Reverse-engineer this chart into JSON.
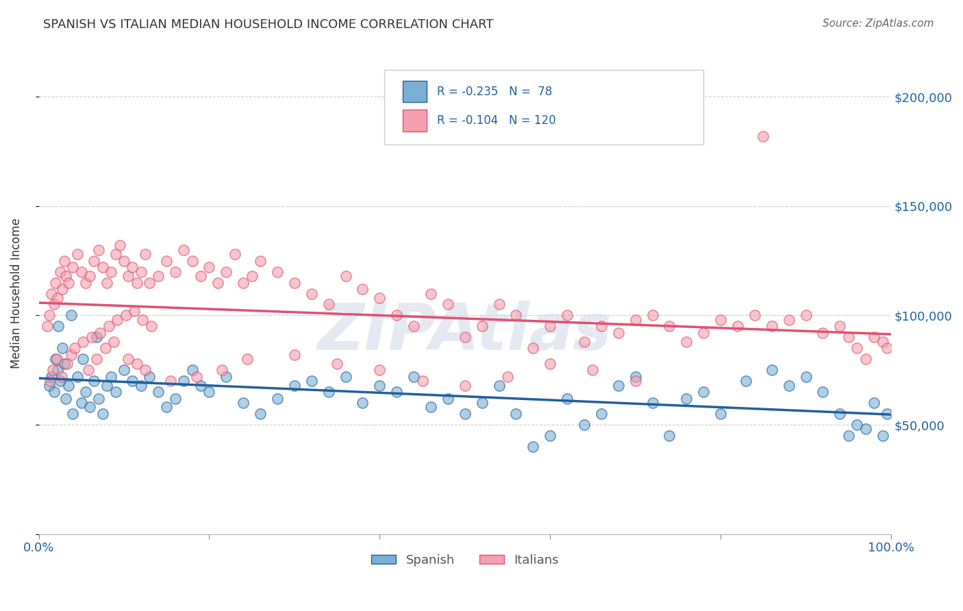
{
  "title": "SPANISH VS ITALIAN MEDIAN HOUSEHOLD INCOME CORRELATION CHART",
  "source": "Source: ZipAtlas.com",
  "ylabel": "Median Household Income",
  "xlim": [
    0.0,
    100.0
  ],
  "ylim": [
    0,
    220000
  ],
  "yticks": [
    0,
    50000,
    100000,
    150000,
    200000
  ],
  "grid_color": "#cccccc",
  "bg_color": "#ffffff",
  "blue_color": "#7bafd4",
  "pink_color": "#f4a0b0",
  "blue_line_color": "#2060a0",
  "pink_line_color": "#e05070",
  "R_spanish": -0.235,
  "N_spanish": 78,
  "R_italian": -0.104,
  "N_italian": 120,
  "watermark": "ZIPAtlas",
  "watermark_color": "#d0d8e8",
  "legend_label_spanish": "Spanish",
  "legend_label_italian": "Italians",
  "spanish_x": [
    1.2,
    1.5,
    1.8,
    2.0,
    2.2,
    2.5,
    2.8,
    3.0,
    3.2,
    3.5,
    4.0,
    4.5,
    5.0,
    5.5,
    6.0,
    6.5,
    7.0,
    7.5,
    8.0,
    8.5,
    9.0,
    10.0,
    11.0,
    12.0,
    13.0,
    14.0,
    15.0,
    16.0,
    17.0,
    18.0,
    19.0,
    20.0,
    22.0,
    24.0,
    26.0,
    28.0,
    30.0,
    32.0,
    34.0,
    36.0,
    38.0,
    40.0,
    42.0,
    44.0,
    46.0,
    48.0,
    50.0,
    52.0,
    54.0,
    56.0,
    58.0,
    60.0,
    62.0,
    64.0,
    66.0,
    68.0,
    70.0,
    72.0,
    74.0,
    76.0,
    78.0,
    80.0,
    83.0,
    86.0,
    88.0,
    90.0,
    92.0,
    94.0,
    95.0,
    96.0,
    97.0,
    98.0,
    99.0,
    99.5,
    2.3,
    3.8,
    5.2,
    6.8
  ],
  "spanish_y": [
    68000,
    72000,
    65000,
    80000,
    75000,
    70000,
    85000,
    78000,
    62000,
    68000,
    55000,
    72000,
    60000,
    65000,
    58000,
    70000,
    62000,
    55000,
    68000,
    72000,
    65000,
    75000,
    70000,
    68000,
    72000,
    65000,
    58000,
    62000,
    70000,
    75000,
    68000,
    65000,
    72000,
    60000,
    55000,
    62000,
    68000,
    70000,
    65000,
    72000,
    60000,
    68000,
    65000,
    72000,
    58000,
    62000,
    55000,
    60000,
    68000,
    55000,
    40000,
    45000,
    62000,
    50000,
    55000,
    68000,
    72000,
    60000,
    45000,
    62000,
    65000,
    55000,
    70000,
    75000,
    68000,
    72000,
    65000,
    55000,
    45000,
    50000,
    48000,
    60000,
    45000,
    55000,
    95000,
    100000,
    80000,
    90000
  ],
  "italian_x": [
    1.0,
    1.2,
    1.5,
    1.8,
    2.0,
    2.2,
    2.5,
    2.8,
    3.0,
    3.2,
    3.5,
    4.0,
    4.5,
    5.0,
    5.5,
    6.0,
    6.5,
    7.0,
    7.5,
    8.0,
    8.5,
    9.0,
    9.5,
    10.0,
    10.5,
    11.0,
    11.5,
    12.0,
    12.5,
    13.0,
    14.0,
    15.0,
    16.0,
    17.0,
    18.0,
    19.0,
    20.0,
    21.0,
    22.0,
    23.0,
    24.0,
    25.0,
    26.0,
    28.0,
    30.0,
    32.0,
    34.0,
    36.0,
    38.0,
    40.0,
    42.0,
    44.0,
    46.0,
    48.0,
    50.0,
    52.0,
    54.0,
    56.0,
    58.0,
    60.0,
    62.0,
    64.0,
    66.0,
    68.0,
    70.0,
    72.0,
    74.0,
    76.0,
    78.0,
    80.0,
    82.0,
    84.0,
    86.0,
    88.0,
    90.0,
    92.0,
    94.0,
    95.0,
    96.0,
    97.0,
    98.0,
    99.0,
    99.5,
    1.3,
    1.6,
    2.1,
    2.7,
    3.3,
    3.8,
    4.2,
    5.2,
    6.2,
    7.2,
    8.2,
    9.2,
    10.2,
    11.2,
    12.2,
    13.2,
    5.8,
    6.8,
    7.8,
    8.8,
    10.5,
    11.5,
    12.5,
    15.5,
    18.5,
    21.5,
    24.5,
    30.0,
    35.0,
    40.0,
    45.0,
    50.0,
    55.0,
    60.0,
    65.0,
    70.0,
    85.0
  ],
  "italian_y": [
    95000,
    100000,
    110000,
    105000,
    115000,
    108000,
    120000,
    112000,
    125000,
    118000,
    115000,
    122000,
    128000,
    120000,
    115000,
    118000,
    125000,
    130000,
    122000,
    115000,
    120000,
    128000,
    132000,
    125000,
    118000,
    122000,
    115000,
    120000,
    128000,
    115000,
    118000,
    125000,
    120000,
    130000,
    125000,
    118000,
    122000,
    115000,
    120000,
    128000,
    115000,
    118000,
    125000,
    120000,
    115000,
    110000,
    105000,
    118000,
    112000,
    108000,
    100000,
    95000,
    110000,
    105000,
    90000,
    95000,
    105000,
    100000,
    85000,
    95000,
    100000,
    88000,
    95000,
    92000,
    98000,
    100000,
    95000,
    88000,
    92000,
    98000,
    95000,
    100000,
    95000,
    98000,
    100000,
    92000,
    95000,
    90000,
    85000,
    80000,
    90000,
    88000,
    85000,
    70000,
    75000,
    80000,
    72000,
    78000,
    82000,
    85000,
    88000,
    90000,
    92000,
    95000,
    98000,
    100000,
    102000,
    98000,
    95000,
    75000,
    80000,
    85000,
    88000,
    80000,
    78000,
    75000,
    70000,
    72000,
    75000,
    80000,
    82000,
    78000,
    75000,
    70000,
    68000,
    72000,
    78000,
    75000,
    70000,
    182000
  ]
}
